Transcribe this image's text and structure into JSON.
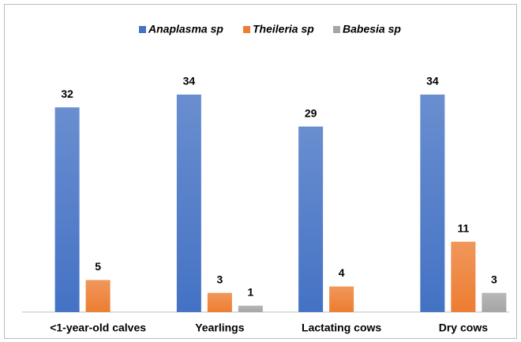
{
  "chart_data": {
    "type": "bar",
    "categories": [
      "<1-year-old calves",
      "Yearlings",
      "Lactating cows",
      "Dry cows"
    ],
    "series": [
      {
        "name": "Anaplasma sp",
        "color": "#4472c4",
        "values": [
          32,
          34,
          29,
          34
        ]
      },
      {
        "name": "Theileria sp",
        "color": "#ed7d31",
        "values": [
          5,
          3,
          4,
          11
        ]
      },
      {
        "name": "Babesia sp",
        "color": "#a5a5a5",
        "values": [
          null,
          1,
          null,
          3
        ]
      }
    ],
    "legend": "top"
  }
}
